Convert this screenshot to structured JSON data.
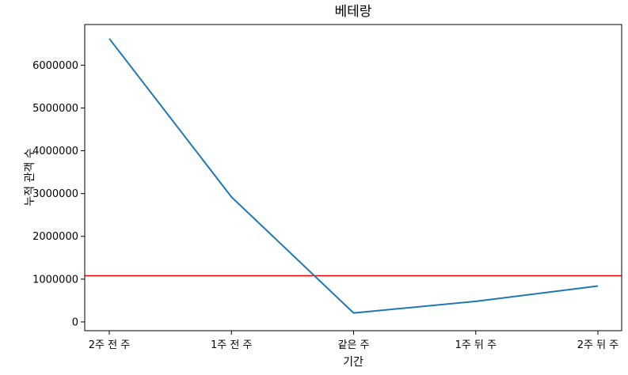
{
  "chart_data": {
    "type": "line",
    "title": "베테랑",
    "xlabel": "기간",
    "ylabel": "누적 관객 수",
    "categories": [
      "2주 전 주",
      "1주 전 주",
      "같은 주",
      "1주 뒤 주",
      "2주 뒤 주"
    ],
    "series": [
      {
        "values": [
          6620000,
          2920000,
          210000,
          480000,
          840000
        ],
        "color": "#1f77b4"
      }
    ],
    "reference_line": {
      "orientation": "horizontal",
      "value": 1080000,
      "color": "#ff0000"
    },
    "yticks": [
      0,
      1000000,
      2000000,
      3000000,
      4000000,
      5000000,
      6000000
    ],
    "ytick_labels": [
      "0",
      "1000000",
      "2000000",
      "3000000",
      "4000000",
      "5000000",
      "6000000"
    ],
    "ylim": [
      -205000,
      6950000
    ],
    "grid": false,
    "legend": "none"
  }
}
